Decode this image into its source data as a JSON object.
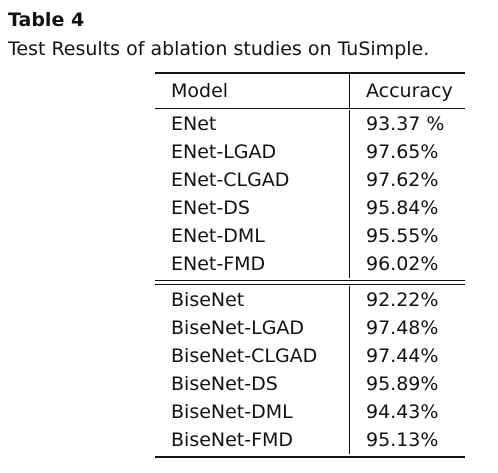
{
  "caption": {
    "label": "Table 4",
    "text": "Test Results of ablation studies on TuSimple."
  },
  "table": {
    "headers": [
      "Model",
      "Accuracy"
    ],
    "groups": [
      [
        {
          "model": "ENet",
          "accuracy": "93.37 %"
        },
        {
          "model": "ENet-LGAD",
          "accuracy": "97.65%"
        },
        {
          "model": "ENet-CLGAD",
          "accuracy": "97.62%"
        },
        {
          "model": "ENet-DS",
          "accuracy": "95.84%"
        },
        {
          "model": "ENet-DML",
          "accuracy": "95.55%"
        },
        {
          "model": "ENet-FMD",
          "accuracy": "96.02%"
        }
      ],
      [
        {
          "model": "BiseNet",
          "accuracy": "92.22%"
        },
        {
          "model": "BiseNet-LGAD",
          "accuracy": "97.48%"
        },
        {
          "model": "BiseNet-CLGAD",
          "accuracy": "97.44%"
        },
        {
          "model": "BiseNet-DS",
          "accuracy": "95.89%"
        },
        {
          "model": "BiseNet-DML",
          "accuracy": "94.43%"
        },
        {
          "model": "BiseNet-FMD",
          "accuracy": "95.13%"
        }
      ]
    ]
  }
}
